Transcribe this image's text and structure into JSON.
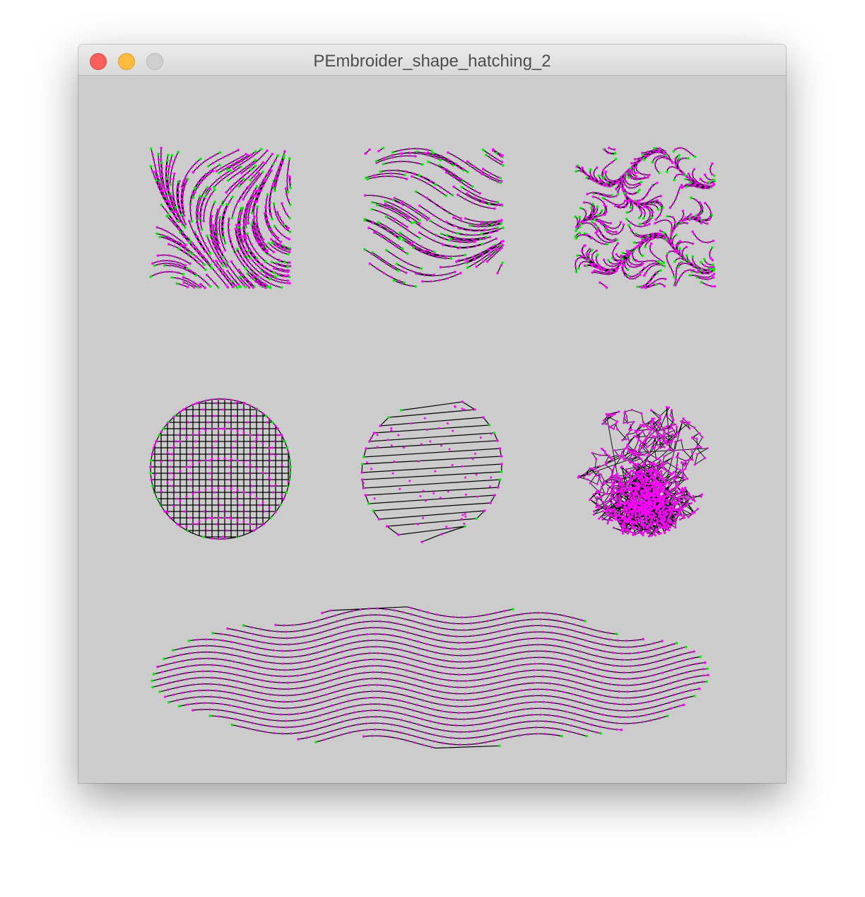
{
  "window": {
    "title": "PEmbroider_shape_hatching_2"
  },
  "colors": {
    "canvas_background": "#cccccc",
    "stitch_line": "#000000",
    "stitch_point": "#ff00ff",
    "stitch_endpoint": "#00ee00",
    "close_button": "#fc605c",
    "minimize_button": "#fdbc40",
    "zoom_button": "#cfcfcf"
  },
  "icons": {
    "close": "close-traffic-light-icon",
    "minimize": "minimize-traffic-light-icon",
    "zoom": "zoom-traffic-light-icon"
  },
  "shapes": [
    {
      "name": "square-1",
      "kind": "square",
      "hatch": "curved flow field"
    },
    {
      "name": "square-2",
      "kind": "square",
      "hatch": "curved flow field (sparse)"
    },
    {
      "name": "square-3",
      "kind": "square",
      "hatch": "noise flow field"
    },
    {
      "name": "circle-1",
      "kind": "circle",
      "hatch": "cross hatch"
    },
    {
      "name": "circle-2",
      "kind": "circle",
      "hatch": "zigzag parallel"
    },
    {
      "name": "circle-3",
      "kind": "circle",
      "hatch": "random scribble"
    },
    {
      "name": "ellipse-1",
      "kind": "ellipse",
      "hatch": "wavy parallel"
    }
  ]
}
